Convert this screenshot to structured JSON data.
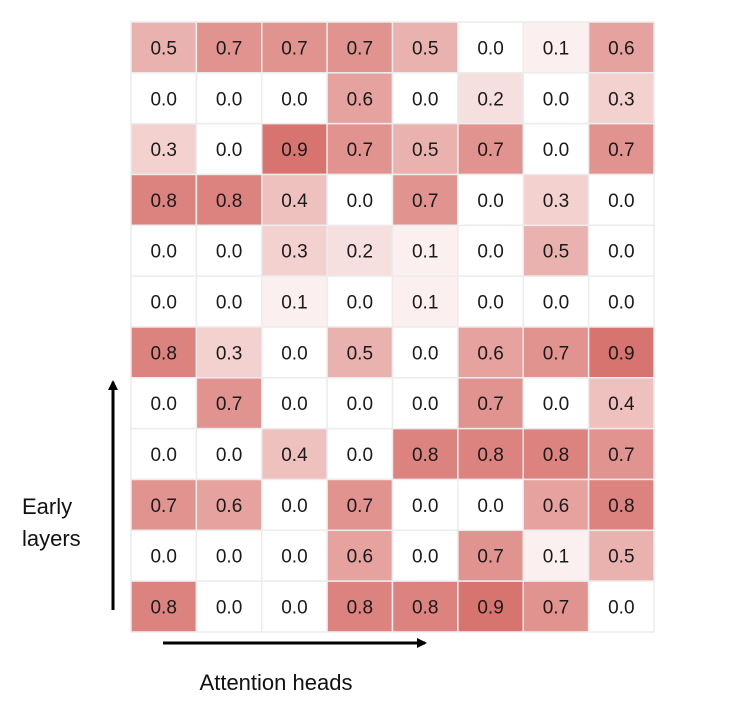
{
  "chart_data": {
    "type": "heatmap",
    "xlabel": "Attention heads",
    "ylabel_lines": [
      "Early",
      "layers"
    ],
    "color_scale": {
      "low": "#ffffff",
      "high": "#d4645f"
    },
    "value_range": [
      0,
      1
    ],
    "rows": [
      [
        0.5,
        0.7,
        0.7,
        0.7,
        0.5,
        0.0,
        0.1,
        0.6
      ],
      [
        0.0,
        0.0,
        0.0,
        0.6,
        0.0,
        0.2,
        0.0,
        0.3
      ],
      [
        0.3,
        0.0,
        0.9,
        0.7,
        0.5,
        0.7,
        0.0,
        0.7
      ],
      [
        0.8,
        0.8,
        0.4,
        0.0,
        0.7,
        0.0,
        0.3,
        0.0
      ],
      [
        0.0,
        0.0,
        0.3,
        0.2,
        0.1,
        0.0,
        0.5,
        0.0
      ],
      [
        0.0,
        0.0,
        0.1,
        0.0,
        0.1,
        0.0,
        0.0,
        0.0
      ],
      [
        0.8,
        0.3,
        0.0,
        0.5,
        0.0,
        0.6,
        0.7,
        0.9
      ],
      [
        0.0,
        0.7,
        0.0,
        0.0,
        0.0,
        0.7,
        0.0,
        0.4
      ],
      [
        0.0,
        0.0,
        0.4,
        0.0,
        0.8,
        0.8,
        0.8,
        0.7
      ],
      [
        0.7,
        0.6,
        0.0,
        0.7,
        0.0,
        0.0,
        0.6,
        0.8
      ],
      [
        0.0,
        0.0,
        0.0,
        0.6,
        0.0,
        0.7,
        0.1,
        0.5
      ],
      [
        0.8,
        0.0,
        0.0,
        0.8,
        0.8,
        0.9,
        0.7,
        0.0
      ]
    ]
  }
}
